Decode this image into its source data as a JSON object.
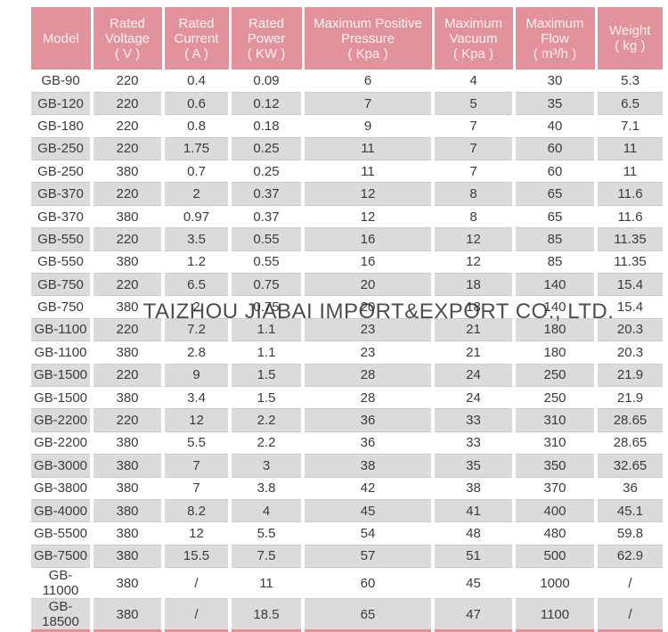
{
  "colors": {
    "header_bg": "#E2929A",
    "header_text": "#FDF4F2",
    "row_alt_bg": "#DBDBDB",
    "row_line": "#CBCBCB",
    "table_bottom_border": "#EC8F8F",
    "body_text": "#3B3B3B"
  },
  "watermark": {
    "text": "TAIZHOU JIABAI IMPORT&EXPORT CO., LTD."
  },
  "table": {
    "columns": [
      {
        "label": "Model",
        "unit": ""
      },
      {
        "label": "Rated Voltage",
        "unit": "( V )"
      },
      {
        "label": "Rated Current",
        "unit": "( A )"
      },
      {
        "label": "Rated Power",
        "unit": "( KW )"
      },
      {
        "label": "Maximum Positive Pressure",
        "unit": "( Kpa )"
      },
      {
        "label": "Maximum Vacuum",
        "unit": "( Kpa )"
      },
      {
        "label": "Maximum Flow",
        "unit": "( m³/h )"
      },
      {
        "label": "Weight",
        "unit": "( kg )"
      }
    ],
    "rows": [
      [
        "GB-90",
        "220",
        "0.4",
        "0.09",
        "6",
        "4",
        "30",
        "5.3"
      ],
      [
        "GB-120",
        "220",
        "0.6",
        "0.12",
        "7",
        "5",
        "35",
        "6.5"
      ],
      [
        "GB-180",
        "220",
        "0.8",
        "0.18",
        "9",
        "7",
        "40",
        "7.1"
      ],
      [
        "GB-250",
        "220",
        "1.75",
        "0.25",
        "11",
        "7",
        "60",
        "11"
      ],
      [
        "GB-250",
        "380",
        "0.7",
        "0.25",
        "11",
        "7",
        "60",
        "11"
      ],
      [
        "GB-370",
        "220",
        "2",
        "0.37",
        "12",
        "8",
        "65",
        "11.6"
      ],
      [
        "GB-370",
        "380",
        "0.97",
        "0.37",
        "12",
        "8",
        "65",
        "11.6"
      ],
      [
        "GB-550",
        "220",
        "3.5",
        "0.55",
        "16",
        "12",
        "85",
        "11.35"
      ],
      [
        "GB-550",
        "380",
        "1.2",
        "0.55",
        "16",
        "12",
        "85",
        "11.35"
      ],
      [
        "GB-750",
        "220",
        "6.5",
        "0.75",
        "20",
        "18",
        "140",
        "15.4"
      ],
      [
        "GB-750",
        "380",
        "2",
        "0.75",
        "20",
        "18",
        "140",
        "15.4"
      ],
      [
        "GB-1100",
        "220",
        "7.2",
        "1.1",
        "23",
        "21",
        "180",
        "20.3"
      ],
      [
        "GB-1100",
        "380",
        "2.8",
        "1.1",
        "23",
        "21",
        "180",
        "20.3"
      ],
      [
        "GB-1500",
        "220",
        "9",
        "1.5",
        "28",
        "24",
        "250",
        "21.9"
      ],
      [
        "GB-1500",
        "380",
        "3.4",
        "1.5",
        "28",
        "24",
        "250",
        "21.9"
      ],
      [
        "GB-2200",
        "220",
        "12",
        "2.2",
        "36",
        "33",
        "310",
        "28.65"
      ],
      [
        "GB-2200",
        "380",
        "5.5",
        "2.2",
        "36",
        "33",
        "310",
        "28.65"
      ],
      [
        "GB-3000",
        "380",
        "7",
        "3",
        "38",
        "35",
        "350",
        "32.65"
      ],
      [
        "GB-3800",
        "380",
        "7",
        "3.8",
        "42",
        "38",
        "370",
        "36"
      ],
      [
        "GB-4000",
        "380",
        "8.2",
        "4",
        "45",
        "41",
        "400",
        "45.1"
      ],
      [
        "GB-5500",
        "380",
        "12",
        "5.5",
        "54",
        "48",
        "480",
        "59.8"
      ],
      [
        "GB-7500",
        "380",
        "15.5",
        "7.5",
        "57",
        "51",
        "500",
        "62.9"
      ],
      [
        "GB-11000",
        "380",
        "/",
        "11",
        "60",
        "45",
        "1000",
        "/"
      ],
      [
        "GB-18500",
        "380",
        "/",
        "18.5",
        "65",
        "47",
        "1100",
        "/"
      ]
    ]
  }
}
